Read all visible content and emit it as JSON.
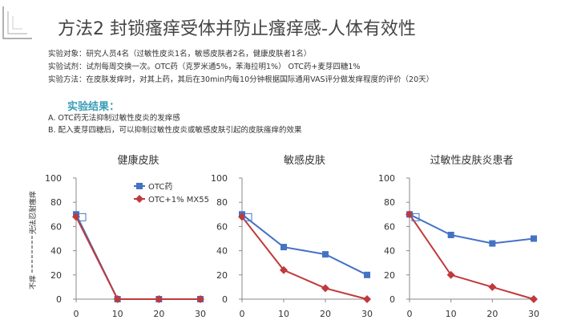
{
  "title": "方法2 封锁瘙痒受体并防止瘙痒感-人体有效性",
  "info": [
    {
      "label": "实验对象：",
      "text": "研究人员4名（过敏性皮炎1名，敏感皮肤者2名，健康皮肤者1名）"
    },
    {
      "label": "实验试剂：",
      "text": "试剂每周交换一次。OTC药（克罗米通5%，苯海拉明1%） OTC药+麦芽四糖1%"
    },
    {
      "label": "实验方法：",
      "text": "在皮肤发痒时，对其上药，其后在30min内每10分钟根据国际通用VAS评分做发痒程度的评价（20天）"
    }
  ],
  "results_title": "实验结果：",
  "results": [
    "A. OTC药无法抑制过敏性皮炎的发痒感",
    "B. 配入麦芽四糖后，可以抑制过敏性皮炎或敏感皮肤引起的皮肤瘙痒的效果"
  ],
  "ylabel_top": "无法忍耐瘙痒",
  "ylabel_bottom": "不痒",
  "colors": {
    "otc": "#4472c4",
    "mx55": "#c0393b"
  },
  "chart_data": [
    {
      "type": "line",
      "title": "健康皮肤",
      "x": [
        0,
        10,
        20,
        30
      ],
      "ylim": [
        0,
        100
      ],
      "yticks": [
        0,
        20,
        40,
        60,
        80,
        100
      ],
      "legend": "top-left",
      "series": [
        {
          "name": "OTC药",
          "values": [
            70,
            0,
            0,
            0
          ],
          "marker": "square",
          "color": "#4472c4"
        },
        {
          "name": "OTC+1% MX55",
          "values": [
            68,
            0,
            0,
            0
          ],
          "marker": "diamond",
          "color": "#c0393b"
        }
      ]
    },
    {
      "type": "line",
      "title": "敏感皮肤",
      "x": [
        0,
        10,
        20,
        30
      ],
      "ylim": [
        0,
        100
      ],
      "yticks": [
        0,
        20,
        40,
        60,
        80,
        100
      ],
      "series": [
        {
          "name": "OTC药",
          "values": [
            70,
            43,
            37,
            20
          ],
          "marker": "square",
          "color": "#4472c4"
        },
        {
          "name": "OTC+1% MX55",
          "values": [
            68,
            24,
            9,
            0
          ],
          "marker": "diamond",
          "color": "#c0393b"
        }
      ]
    },
    {
      "type": "line",
      "title": "过敏性皮肤炎患者",
      "x": [
        0,
        10,
        20,
        30
      ],
      "ylim": [
        0,
        100
      ],
      "yticks": [
        0,
        20,
        40,
        60,
        80,
        100
      ],
      "series": [
        {
          "name": "OTC药",
          "values": [
            70,
            53,
            46,
            50
          ],
          "marker": "square",
          "color": "#4472c4"
        },
        {
          "name": "OTC+1% MX55",
          "values": [
            70,
            20,
            10,
            0
          ],
          "marker": "diamond",
          "color": "#c0393b"
        }
      ]
    }
  ]
}
